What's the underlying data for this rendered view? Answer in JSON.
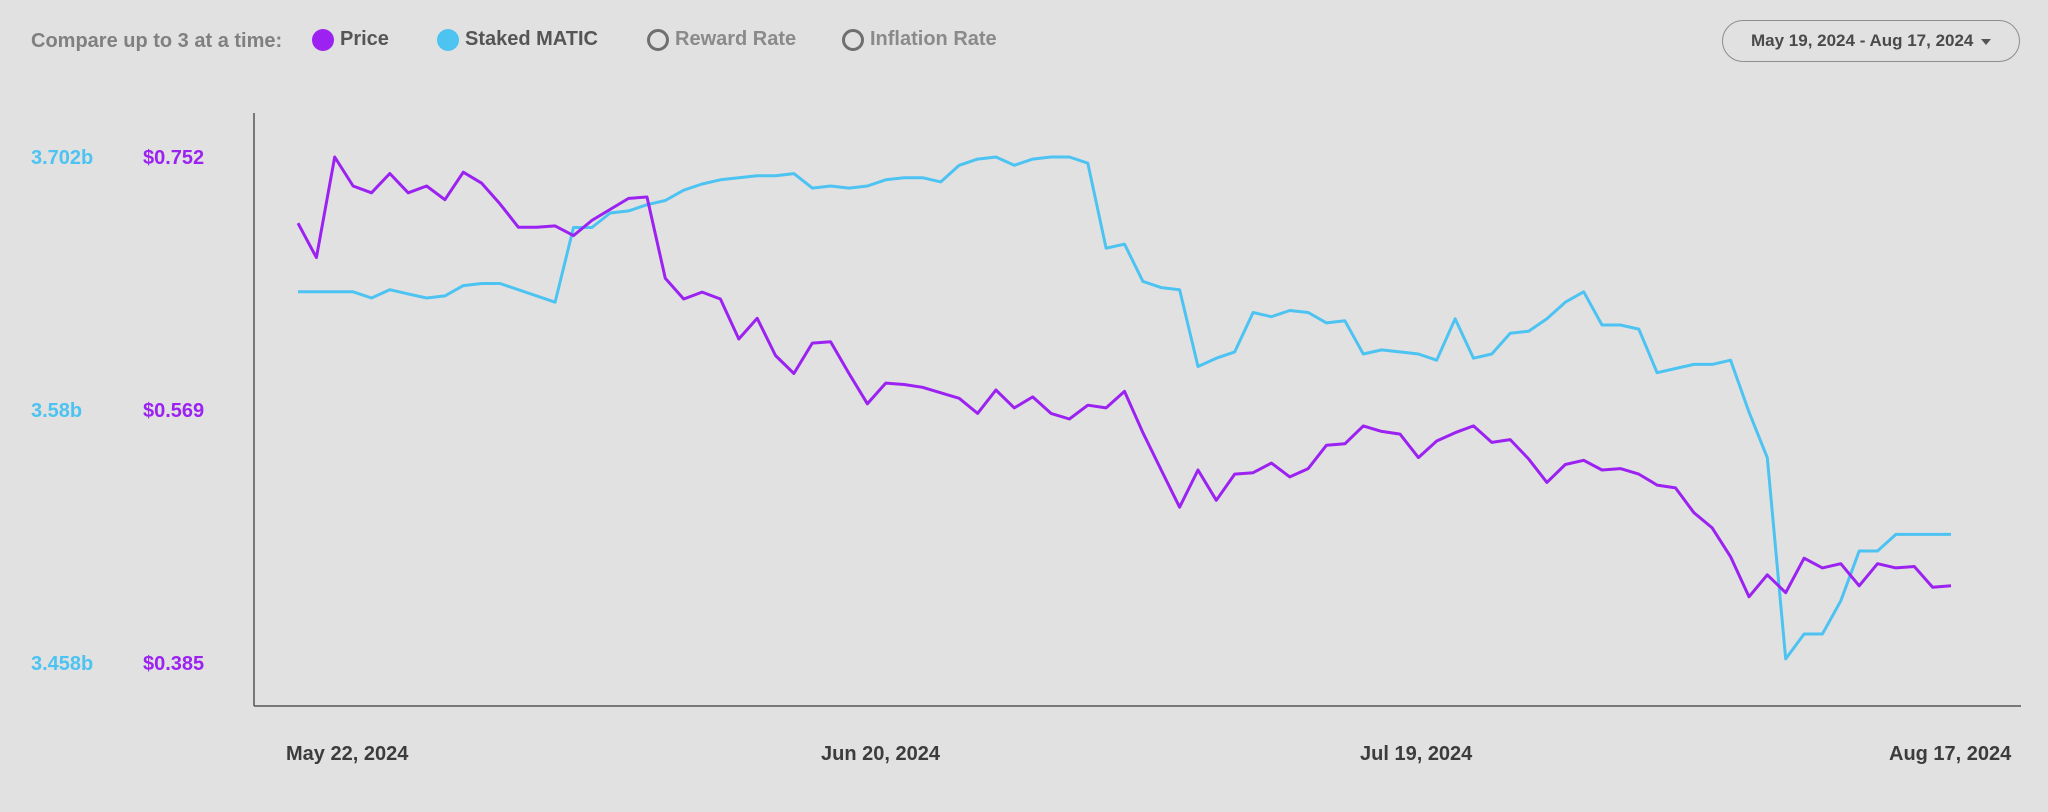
{
  "toolbar": {
    "compare_label": "Compare up to 3 at a time:",
    "metrics": [
      {
        "label": "Price",
        "color": "#9b22f0",
        "selected": true
      },
      {
        "label": "Staked MATIC",
        "color": "#4dc3f2",
        "selected": true
      },
      {
        "label": "Reward Rate",
        "color": "#6f6f6f",
        "selected": false
      },
      {
        "label": "Inflation Rate",
        "color": "#6f6f6f",
        "selected": false
      }
    ],
    "date_range": "May 19, 2024 - Aug 17, 2024",
    "date_range_icon": "chevron-down-icon"
  },
  "chart_data": {
    "type": "line",
    "x_ticks": [
      "May 22, 2024",
      "Jun 20, 2024",
      "Jul 19, 2024",
      "Aug 17, 2024"
    ],
    "x_range": [
      "2024-05-19",
      "2024-08-17"
    ],
    "y_left_ticks": [
      "3.702b",
      "3.58b",
      "3.458b"
    ],
    "y_left_values": [
      3.702,
      3.58,
      3.458
    ],
    "y_right_ticks": [
      "$0.752",
      "$0.569",
      "$0.385"
    ],
    "y_right_values": [
      0.752,
      0.569,
      0.385
    ],
    "series": [
      {
        "name": "Price",
        "color": "#9b22f0",
        "axis": "price",
        "dates": [
          "2024-05-19",
          "2024-05-20",
          "2024-05-21",
          "2024-05-22",
          "2024-05-23",
          "2024-05-24",
          "2024-05-25",
          "2024-05-26",
          "2024-05-27",
          "2024-05-28",
          "2024-05-29",
          "2024-05-30",
          "2024-05-31",
          "2024-06-01",
          "2024-06-02",
          "2024-06-03",
          "2024-06-04",
          "2024-06-05",
          "2024-06-06",
          "2024-06-07",
          "2024-06-08",
          "2024-06-09",
          "2024-06-10",
          "2024-06-11",
          "2024-06-12",
          "2024-06-13",
          "2024-06-14",
          "2024-06-15",
          "2024-06-16",
          "2024-06-17",
          "2024-06-18",
          "2024-06-19",
          "2024-06-20",
          "2024-06-21",
          "2024-06-22",
          "2024-06-23",
          "2024-06-24",
          "2024-06-25",
          "2024-06-26",
          "2024-06-27",
          "2024-06-28",
          "2024-06-29",
          "2024-06-30",
          "2024-07-01",
          "2024-07-02",
          "2024-07-03",
          "2024-07-04",
          "2024-07-05",
          "2024-07-06",
          "2024-07-07",
          "2024-07-08",
          "2024-07-09",
          "2024-07-10",
          "2024-07-11",
          "2024-07-12",
          "2024-07-13",
          "2024-07-14",
          "2024-07-15",
          "2024-07-16",
          "2024-07-17",
          "2024-07-18",
          "2024-07-19",
          "2024-07-20",
          "2024-07-21",
          "2024-07-22",
          "2024-07-23",
          "2024-07-24",
          "2024-07-25",
          "2024-07-26",
          "2024-07-27",
          "2024-07-28",
          "2024-07-29",
          "2024-07-30",
          "2024-07-31",
          "2024-08-01",
          "2024-08-02",
          "2024-08-03",
          "2024-08-04",
          "2024-08-05",
          "2024-08-06",
          "2024-08-07",
          "2024-08-08",
          "2024-08-09",
          "2024-08-10",
          "2024-08-11",
          "2024-08-12",
          "2024-08-13",
          "2024-08-14",
          "2024-08-15",
          "2024-08-16",
          "2024-08-17"
        ],
        "values": [
          0.704,
          0.679,
          0.752,
          0.731,
          0.726,
          0.74,
          0.726,
          0.731,
          0.721,
          0.741,
          0.733,
          0.718,
          0.701,
          0.701,
          0.702,
          0.695,
          0.706,
          0.714,
          0.722,
          0.723,
          0.664,
          0.649,
          0.654,
          0.649,
          0.62,
          0.635,
          0.608,
          0.595,
          0.617,
          0.618,
          0.595,
          0.573,
          0.588,
          0.587,
          0.585,
          0.581,
          0.577,
          0.566,
          0.583,
          0.57,
          0.578,
          0.566,
          0.562,
          0.572,
          0.57,
          0.582,
          0.552,
          0.525,
          0.498,
          0.525,
          0.503,
          0.522,
          0.523,
          0.53,
          0.52,
          0.526,
          0.543,
          0.544,
          0.557,
          0.553,
          0.551,
          0.534,
          0.546,
          0.552,
          0.557,
          0.545,
          0.547,
          0.533,
          0.516,
          0.529,
          0.532,
          0.525,
          0.526,
          0.522,
          0.514,
          0.512,
          0.494,
          0.483,
          0.462,
          0.433,
          0.449,
          0.436,
          0.461,
          0.454,
          0.457,
          0.441,
          0.457,
          0.454,
          0.455,
          0.44,
          0.441
        ]
      },
      {
        "name": "Staked MATIC",
        "color": "#4dc3f2",
        "axis": "staked",
        "dates": [
          "2024-05-19",
          "2024-05-20",
          "2024-05-21",
          "2024-05-22",
          "2024-05-23",
          "2024-05-24",
          "2024-05-25",
          "2024-05-26",
          "2024-05-27",
          "2024-05-28",
          "2024-05-29",
          "2024-05-30",
          "2024-06-02",
          "2024-06-03",
          "2024-06-04",
          "2024-06-05",
          "2024-06-06",
          "2024-06-07",
          "2024-06-08",
          "2024-06-09",
          "2024-06-10",
          "2024-06-11",
          "2024-06-12",
          "2024-06-13",
          "2024-06-14",
          "2024-06-15",
          "2024-06-16",
          "2024-06-17",
          "2024-06-18",
          "2024-06-19",
          "2024-06-20",
          "2024-06-21",
          "2024-06-22",
          "2024-06-23",
          "2024-06-24",
          "2024-06-25",
          "2024-06-26",
          "2024-06-27",
          "2024-06-28",
          "2024-06-29",
          "2024-06-30",
          "2024-07-01",
          "2024-07-02",
          "2024-07-03",
          "2024-07-04",
          "2024-07-05",
          "2024-07-06",
          "2024-07-07",
          "2024-07-08",
          "2024-07-09",
          "2024-07-10",
          "2024-07-11",
          "2024-07-12",
          "2024-07-13",
          "2024-07-14",
          "2024-07-15",
          "2024-07-16",
          "2024-07-17",
          "2024-07-18",
          "2024-07-19",
          "2024-07-20",
          "2024-07-21",
          "2024-07-22",
          "2024-07-23",
          "2024-07-24",
          "2024-07-25",
          "2024-07-26",
          "2024-07-27",
          "2024-07-28",
          "2024-07-29",
          "2024-07-30",
          "2024-07-31",
          "2024-08-01",
          "2024-08-02",
          "2024-08-03",
          "2024-08-04",
          "2024-08-05",
          "2024-08-06",
          "2024-08-07",
          "2024-08-08",
          "2024-08-09",
          "2024-08-10",
          "2024-08-11",
          "2024-08-12",
          "2024-08-13",
          "2024-08-14",
          "2024-08-15",
          "2024-08-16",
          "2024-08-17"
        ],
        "values": [
          3.637,
          3.637,
          3.637,
          3.637,
          3.634,
          3.638,
          3.636,
          3.634,
          3.635,
          3.64,
          3.641,
          3.641,
          3.632,
          3.668,
          3.668,
          3.675,
          3.676,
          3.679,
          3.681,
          3.686,
          3.689,
          3.691,
          3.692,
          3.693,
          3.693,
          3.694,
          3.687,
          3.688,
          3.687,
          3.688,
          3.691,
          3.692,
          3.692,
          3.69,
          3.698,
          3.701,
          3.702,
          3.698,
          3.701,
          3.702,
          3.702,
          3.699,
          3.658,
          3.66,
          3.642,
          3.639,
          3.638,
          3.601,
          3.605,
          3.608,
          3.627,
          3.625,
          3.628,
          3.627,
          3.622,
          3.623,
          3.607,
          3.609,
          3.608,
          3.607,
          3.604,
          3.624,
          3.605,
          3.607,
          3.617,
          3.618,
          3.624,
          3.632,
          3.637,
          3.621,
          3.621,
          3.619,
          3.598,
          3.6,
          3.602,
          3.602,
          3.604,
          3.579,
          3.557,
          3.46,
          3.472,
          3.472,
          3.488,
          3.512,
          3.512,
          3.52,
          3.52,
          3.52,
          3.52
        ]
      }
    ],
    "axis_mapping": {
      "staked": {
        "min": 3.458,
        "max": 3.702
      },
      "price": {
        "min": 0.385,
        "max": 0.752
      }
    }
  }
}
